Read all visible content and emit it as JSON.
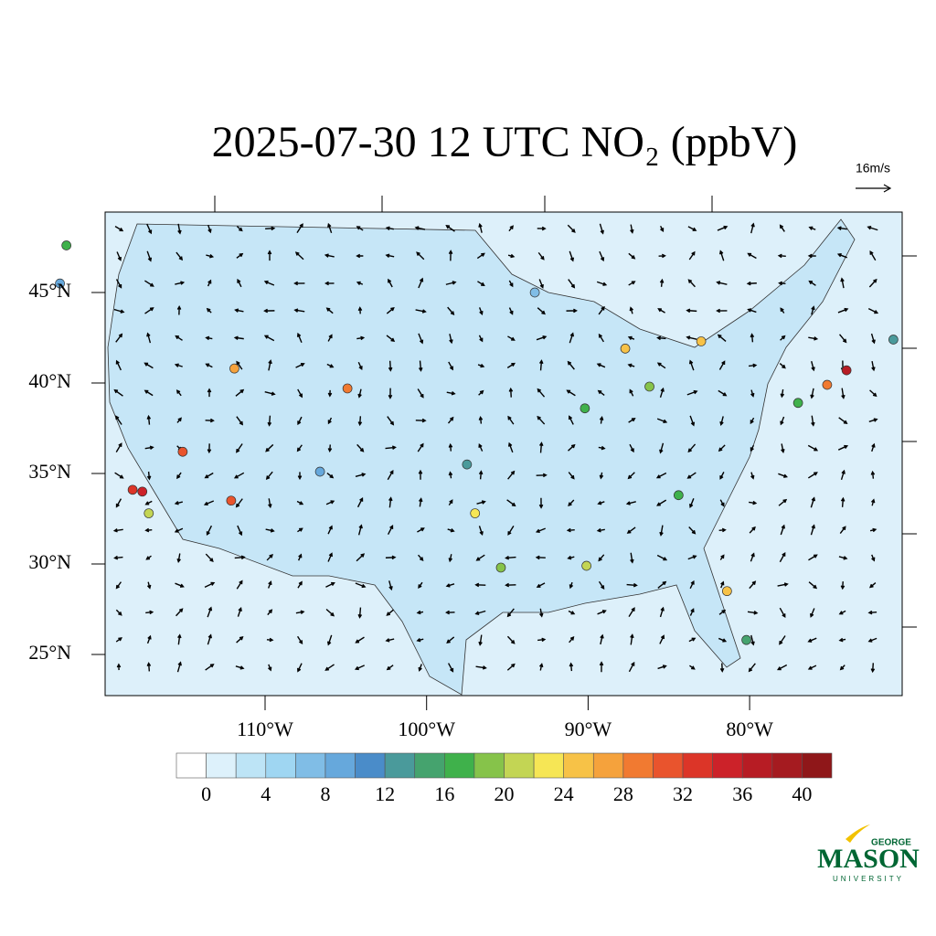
{
  "header": {
    "title": "2025-07-30 12 UTC NO₂ (ppbV)",
    "vector_reference": "16m/s"
  },
  "map": {
    "lat_labels": [
      {
        "lat": 45,
        "label": "45°N"
      },
      {
        "lat": 40,
        "label": "40°N"
      },
      {
        "lat": 35,
        "label": "35°N"
      },
      {
        "lat": 30,
        "label": "30°N"
      },
      {
        "lat": 25,
        "label": "25°N"
      }
    ],
    "lon_labels": [
      {
        "lon": -110,
        "label": "110°W"
      },
      {
        "lon": -100,
        "label": "100°W"
      },
      {
        "lon": -90,
        "label": "90°W"
      },
      {
        "lon": -80,
        "label": "80°W"
      }
    ],
    "stations": [
      {
        "lon": -122.3,
        "lat": 47.6,
        "no2": 16
      },
      {
        "lon": -122.7,
        "lat": 45.5,
        "no2": 8
      },
      {
        "lon": -118.2,
        "lat": 34.1,
        "no2": 32
      },
      {
        "lon": -117.6,
        "lat": 34.0,
        "no2": 34
      },
      {
        "lon": -117.2,
        "lat": 32.8,
        "no2": 20
      },
      {
        "lon": -115.1,
        "lat": 36.2,
        "no2": 30
      },
      {
        "lon": -112.1,
        "lat": 33.5,
        "no2": 30
      },
      {
        "lon": -111.9,
        "lat": 40.8,
        "no2": 26
      },
      {
        "lon": -104.9,
        "lat": 39.7,
        "no2": 28
      },
      {
        "lon": -97.0,
        "lat": 32.8,
        "no2": 22
      },
      {
        "lon": -95.4,
        "lat": 29.8,
        "no2": 18
      },
      {
        "lon": -90.1,
        "lat": 29.9,
        "no2": 20
      },
      {
        "lon": -87.7,
        "lat": 41.9,
        "no2": 24
      },
      {
        "lon": -83.0,
        "lat": 42.3,
        "no2": 24
      },
      {
        "lon": -86.2,
        "lat": 39.8,
        "no2": 18
      },
      {
        "lon": -84.4,
        "lat": 33.8,
        "no2": 16
      },
      {
        "lon": -80.2,
        "lat": 25.8,
        "no2": 14
      },
      {
        "lon": -81.4,
        "lat": 28.5,
        "no2": 24
      },
      {
        "lon": -74.0,
        "lat": 40.7,
        "no2": 36
      },
      {
        "lon": -75.2,
        "lat": 39.9,
        "no2": 28
      },
      {
        "lon": -77.0,
        "lat": 38.9,
        "no2": 16
      },
      {
        "lon": -71.1,
        "lat": 42.4,
        "no2": 12
      },
      {
        "lon": -90.2,
        "lat": 38.6,
        "no2": 16
      },
      {
        "lon": -93.3,
        "lat": 45.0,
        "no2": 6
      },
      {
        "lon": -97.5,
        "lat": 35.5,
        "no2": 12
      },
      {
        "lon": -106.6,
        "lat": 35.1,
        "no2": 8
      }
    ]
  },
  "colorbar": {
    "ticks": [
      0,
      4,
      8,
      12,
      16,
      20,
      24,
      28,
      32,
      36,
      40
    ],
    "colors": [
      "#ffffff",
      "#ddf1fb",
      "#bde4f6",
      "#9fd6f2",
      "#80bde6",
      "#66a8dc",
      "#4a8cc9",
      "#4a9a9b",
      "#45a36e",
      "#3fb14b",
      "#86c34a",
      "#c3d554",
      "#f6e655",
      "#f7c247",
      "#f5a23c",
      "#f17a31",
      "#e9542d",
      "#dc3528",
      "#cc2229",
      "#b71c24",
      "#a51b20",
      "#8f1719"
    ]
  },
  "logo": {
    "top": "GEORGE",
    "name": "MASON",
    "bottom": "UNIVERSITY"
  }
}
